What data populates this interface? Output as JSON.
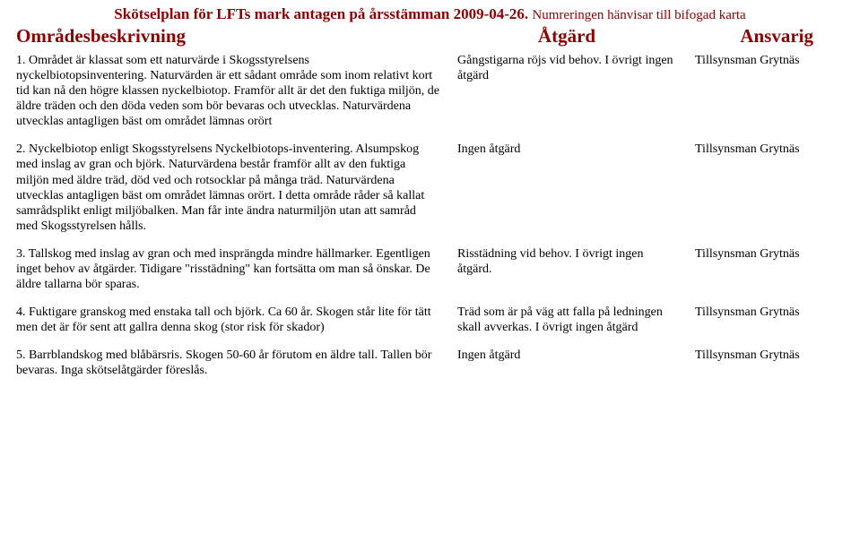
{
  "titleMain": "Skötselplan för LFTs mark antagen på årsstämman 2009-04-26.",
  "titleSub": "Numreringen hänvisar till bifogad karta",
  "headers": {
    "desc": "Områdesbeskrivning",
    "act": "Åtgärd",
    "resp": "Ansvarig"
  },
  "rows": [
    {
      "desc": "1. Området är klassat som ett naturvärde i Skogsstyrelsens nyckelbiotopsinventering. Naturvärden är ett sådant område som inom relativt kort tid kan nå den högre klassen nyckelbiotop. Framför allt är det den fuktiga miljön, de äldre träden och den döda veden som bör bevaras och utvecklas. Naturvärdena utvecklas antagligen bäst om området lämnas orört",
      "act": "Gångstigarna röjs vid behov. I övrigt ingen åtgärd",
      "resp": "Tillsynsman Grytnäs"
    },
    {
      "desc": "2. Nyckelbiotop enligt Skogsstyrelsens Nyckelbiotops-inventering. Alsumpskog med inslag av gran och björk. Naturvärdena består framför allt av den fuktiga miljön med äldre träd, död ved och rotsocklar på många träd. Naturvärdena utvecklas antagligen bäst om området lämnas orört. I detta område råder så kallat samrådsplikt enligt miljöbalken. Man får inte ändra naturmiljön utan att samråd med Skogsstyrelsen hålls.",
      "act": "Ingen åtgärd",
      "resp": "Tillsynsman Grytnäs"
    },
    {
      "desc": "3. Tallskog med inslag av gran och med insprängda mindre hällmarker. Egentligen inget behov av åtgärder. Tidigare \"risstädning\" kan fortsätta om man så önskar. De äldre tallarna bör sparas.",
      "act": "Risstädning vid behov. I övrigt ingen åtgärd.",
      "resp": "Tillsynsman Grytnäs"
    },
    {
      "desc": "4. Fuktigare granskog med enstaka tall och björk. Ca 60 år. Skogen står lite för tätt men det är för sent att gallra denna skog (stor risk för skador)",
      "act": "Träd som är på väg att falla på ledningen skall avverkas. I övrigt ingen åtgärd",
      "resp": "Tillsynsman Grytnäs"
    },
    {
      "desc": "5. Barrblandskog med blåbärsris. Skogen 50-60 år förutom en äldre tall. Tallen bör bevaras. Inga skötselåtgärder föreslås.",
      "act": "Ingen åtgärd",
      "resp": "Tillsynsman Grytnäs"
    }
  ]
}
